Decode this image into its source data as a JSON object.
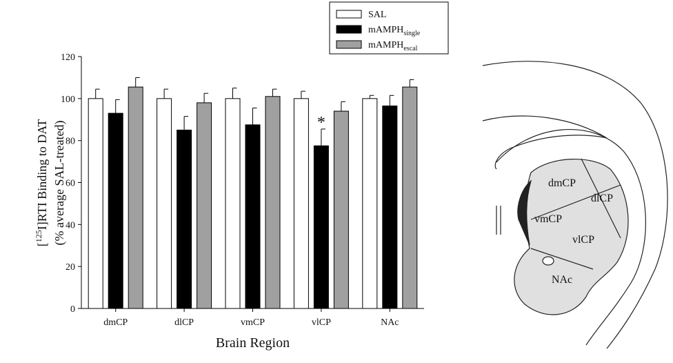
{
  "chart_data": {
    "type": "bar",
    "ylabel": [
      "[",
      "125",
      "I]RTI Binding to DAT"
    ],
    "ylabel2": "(% average SAL-treated)",
    "xlabel": "Brain Region",
    "categories": [
      "dmCP",
      "dlCP",
      "vmCP",
      "vlCP",
      "NAc"
    ],
    "series": [
      {
        "name": "SAL",
        "color": "#ffffff",
        "values": [
          100,
          100,
          100,
          100,
          100
        ],
        "errors": [
          4.5,
          4.5,
          5,
          3.5,
          1.5
        ]
      },
      {
        "name": "mAMPH",
        "subscript": "single",
        "color": "#000000",
        "values": [
          93,
          85,
          87.5,
          77.5,
          96.5
        ],
        "errors": [
          6.5,
          6.5,
          8,
          8,
          5
        ]
      },
      {
        "name": "mAMPH",
        "subscript": "escal",
        "color": "#a0a0a0",
        "values": [
          105.5,
          98,
          101,
          94,
          105.5
        ],
        "errors": [
          4.5,
          4.5,
          3.5,
          4.5,
          3.5
        ]
      }
    ],
    "annotations": [
      {
        "text": "*",
        "category": 3,
        "series": 1
      }
    ],
    "ylim": [
      0,
      120
    ],
    "yticks": [
      0,
      20,
      40,
      60,
      80,
      100,
      120
    ],
    "legend": "top-right"
  },
  "diagram": {
    "labels": [
      "dmCP",
      "dlCP",
      "vmCP",
      "vlCP",
      "NAc"
    ]
  }
}
